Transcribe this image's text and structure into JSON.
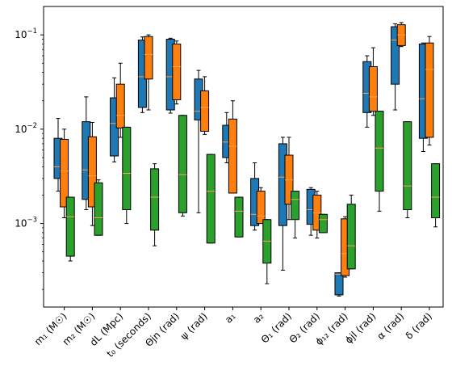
{
  "chart_data": {
    "type": "box",
    "yscale": "log",
    "ylim": [
      0.00013,
      0.2
    ],
    "yticks": [
      {
        "value": 0.001,
        "base": "10",
        "exp": "−3"
      },
      {
        "value": 0.01,
        "base": "10",
        "exp": "−2"
      },
      {
        "value": 0.1,
        "base": "10",
        "exp": "−1"
      }
    ],
    "grid": false,
    "series_colors": [
      "#1f77b4",
      "#ff7f0e",
      "#2ca02c"
    ],
    "median_color": "#ffa050",
    "categories": [
      "m₁ (M☉)",
      "m₂ (M☉)",
      "dL (Mpc)",
      "t₀ (seconds)",
      "Θjn (rad)",
      "ψ (rad)",
      "a₁",
      "a₂",
      "Θ₁ (rad)",
      "Θ₂ (rad)",
      "ϕ₁₂ (rad)",
      "ϕjl (rad)",
      "α (rad)",
      "δ (rad)"
    ],
    "series": [
      {
        "boxes": [
          {
            "wlo": 0.0022,
            "q1": 0.003,
            "med": 0.004,
            "q3": 0.008,
            "whi": 0.013
          },
          {
            "wlo": 0.0014,
            "q1": 0.0018,
            "med": 0.0037,
            "q3": 0.012,
            "whi": 0.022
          },
          {
            "wlo": 0.0045,
            "q1": 0.0052,
            "med": 0.0115,
            "q3": 0.0215,
            "whi": 0.035
          },
          {
            "wlo": 0.015,
            "q1": 0.017,
            "med": 0.036,
            "q3": 0.088,
            "whi": 0.095
          },
          {
            "wlo": 0.0148,
            "q1": 0.016,
            "med": 0.036,
            "q3": 0.09,
            "whi": 0.092
          },
          {
            "wlo": 0.0013,
            "q1": 0.0125,
            "med": 0.0155,
            "q3": 0.034,
            "whi": 0.042
          },
          {
            "wlo": 0.0044,
            "q1": 0.005,
            "med": 0.0073,
            "q3": 0.011,
            "whi": 0.015
          },
          {
            "wlo": 0.00085,
            "q1": 0.00095,
            "med": 0.00125,
            "q3": 0.003,
            "whi": 0.0044
          },
          {
            "wlo": 0.00032,
            "q1": 0.00095,
            "med": 0.0031,
            "q3": 0.007,
            "whi": 0.0082
          },
          {
            "wlo": 0.00075,
            "q1": 0.00098,
            "med": 0.0014,
            "q3": 0.0023,
            "whi": 0.0024
          },
          {
            "wlo": 0.00017,
            "q1": 0.000175,
            "med": 0.00029,
            "q3": 0.0003,
            "whi": 0.0003
          },
          {
            "wlo": 0.0105,
            "q1": 0.015,
            "med": 0.024,
            "q3": 0.052,
            "whi": 0.06
          },
          {
            "wlo": 0.016,
            "q1": 0.03,
            "med": 0.088,
            "q3": 0.122,
            "whi": 0.131
          },
          {
            "wlo": 0.0058,
            "q1": 0.008,
            "med": 0.021,
            "q3": 0.08,
            "whi": 0.082
          }
        ]
      },
      {
        "boxes": [
          {
            "wlo": 0.00115,
            "q1": 0.0015,
            "med": 0.0036,
            "q3": 0.0078,
            "whi": 0.01
          },
          {
            "wlo": 0.00095,
            "q1": 0.0015,
            "med": 0.0032,
            "q3": 0.0083,
            "whi": 0.0118
          },
          {
            "wlo": 0.0082,
            "q1": 0.0103,
            "med": 0.014,
            "q3": 0.03,
            "whi": 0.05
          },
          {
            "wlo": 0.016,
            "q1": 0.034,
            "med": 0.062,
            "q3": 0.096,
            "whi": 0.1
          },
          {
            "wlo": 0.0185,
            "q1": 0.0205,
            "med": 0.046,
            "q3": 0.08,
            "whi": 0.086
          },
          {
            "wlo": 0.0088,
            "q1": 0.0095,
            "med": 0.017,
            "q3": 0.0255,
            "whi": 0.036
          },
          {
            "wlo": 0.0022,
            "q1": 0.0021,
            "med": 0.0066,
            "q3": 0.0128,
            "whi": 0.02
          },
          {
            "wlo": 0.001,
            "q1": 0.001,
            "med": 0.0012,
            "q3": 0.0022,
            "whi": 0.0024
          },
          {
            "wlo": 0.0011,
            "q1": 0.0016,
            "med": 0.0029,
            "q3": 0.0053,
            "whi": 0.0082
          },
          {
            "wlo": 0.0007,
            "q1": 0.00085,
            "med": 0.0013,
            "q3": 0.002,
            "whi": 0.0022
          },
          {
            "wlo": 0.00027,
            "q1": 0.00028,
            "med": 0.00048,
            "q3": 0.00112,
            "whi": 0.00118
          },
          {
            "wlo": 0.014,
            "q1": 0.0155,
            "med": 0.022,
            "q3": 0.046,
            "whi": 0.073
          },
          {
            "wlo": 0.075,
            "q1": 0.077,
            "med": 0.1,
            "q3": 0.128,
            "whi": 0.135
          },
          {
            "wlo": 0.0068,
            "q1": 0.0082,
            "med": 0.043,
            "q3": 0.082,
            "whi": 0.096
          }
        ]
      },
      {
        "boxes": [
          {
            "wlo": 0.0004,
            "q1": 0.00045,
            "med": 0.00118,
            "q3": 0.0019,
            "whi": 0.0019
          },
          {
            "wlo": 0.00075,
            "q1": 0.00075,
            "med": 0.00115,
            "q3": 0.0027,
            "whi": 0.0029
          },
          {
            "wlo": 0.001,
            "q1": 0.0014,
            "med": 0.0034,
            "q3": 0.0105,
            "whi": 0.0105
          },
          {
            "wlo": 0.00058,
            "q1": 0.00085,
            "med": 0.0019,
            "q3": 0.0038,
            "whi": 0.0043
          },
          {
            "wlo": 0.0012,
            "q1": 0.0013,
            "med": 0.0033,
            "q3": 0.014,
            "whi": 0.014
          },
          {
            "wlo": 0.00062,
            "q1": 0.00062,
            "med": 0.0022,
            "q3": 0.0054,
            "whi": 0.0054
          },
          {
            "wlo": 0.00072,
            "q1": 0.00072,
            "med": 0.00135,
            "q3": 0.0019,
            "whi": 0.0019
          },
          {
            "wlo": 0.00023,
            "q1": 0.00038,
            "med": 0.00065,
            "q3": 0.0011,
            "whi": 0.0011
          },
          {
            "wlo": 0.0007,
            "q1": 0.0011,
            "med": 0.0018,
            "q3": 0.0022,
            "whi": 0.0022
          },
          {
            "wlo": 0.0008,
            "q1": 0.0008,
            "med": 0.0011,
            "q3": 0.00125,
            "whi": 0.00125
          },
          {
            "wlo": 0.00033,
            "q1": 0.00033,
            "med": 0.00058,
            "q3": 0.0016,
            "whi": 0.002
          },
          {
            "wlo": 0.00135,
            "q1": 0.0022,
            "med": 0.0063,
            "q3": 0.0155,
            "whi": 0.0155
          },
          {
            "wlo": 0.00115,
            "q1": 0.0014,
            "med": 0.0025,
            "q3": 0.012,
            "whi": 0.012
          },
          {
            "wlo": 0.00092,
            "q1": 0.00115,
            "med": 0.0019,
            "q3": 0.0043,
            "whi": 0.0043
          }
        ]
      }
    ]
  }
}
